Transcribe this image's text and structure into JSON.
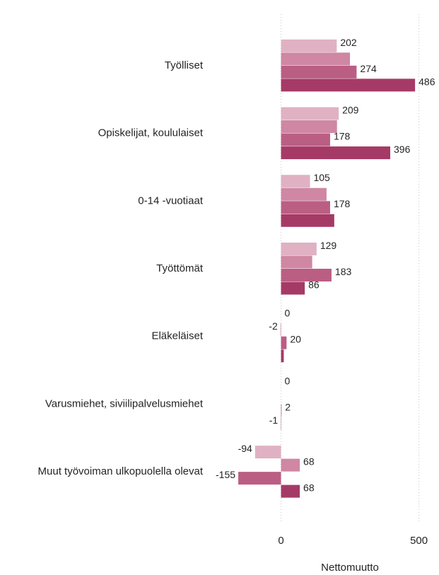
{
  "chart_data": {
    "type": "bar",
    "orientation": "horizontal",
    "x_label": "Nettomuutto",
    "categories": [
      "Työlliset",
      "Opiskelijat, koululaiset",
      "0-14 -vuotiaat",
      "Työttömät",
      "Eläkeläiset",
      "Varusmiehet, siviilipalvelusmiehet",
      "Muut työvoiman ulkopuolella olevat"
    ],
    "series": [
      {
        "color": "#dfb1c3",
        "values": [
          202,
          209,
          105,
          129,
          0,
          0,
          -94
        ],
        "value_labels": [
          "202",
          "209",
          "105",
          "129",
          "0",
          "0",
          "-94"
        ]
      },
      {
        "color": "#cf87a3",
        "values": [
          250,
          203,
          165,
          113,
          -2,
          0,
          68
        ],
        "value_labels": [
          null,
          null,
          null,
          null,
          "-2",
          null,
          "68"
        ]
      },
      {
        "color": "#bb5e84",
        "values": [
          274,
          178,
          178,
          183,
          20,
          2,
          -155
        ],
        "value_labels": [
          "274",
          "178",
          "178",
          "183",
          "20",
          "2",
          "-155"
        ]
      },
      {
        "color": "#a63a66",
        "values": [
          486,
          396,
          193,
          86,
          10,
          -1,
          68
        ],
        "value_labels": [
          "486",
          "396",
          null,
          "86",
          null,
          "-1",
          "68"
        ]
      }
    ],
    "xlim": [
      -250,
      560
    ],
    "xticks": [
      0,
      500
    ],
    "grid": true
  }
}
